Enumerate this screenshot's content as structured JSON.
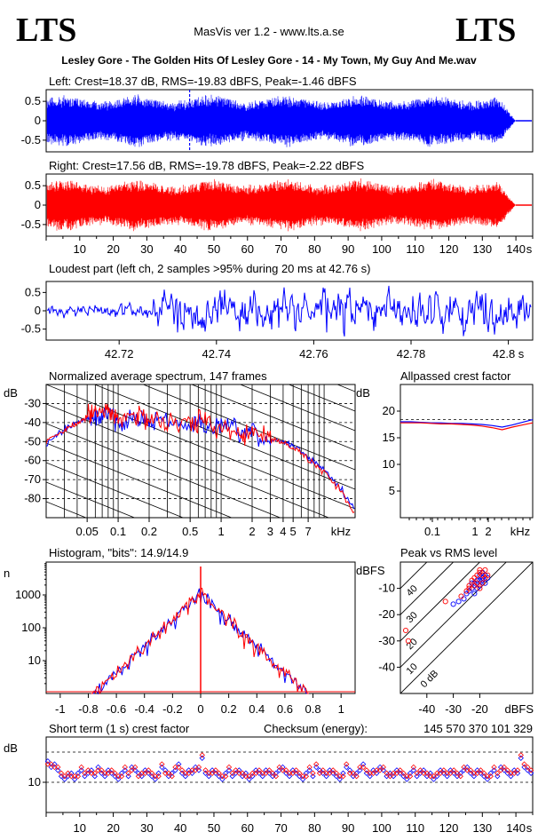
{
  "header": {
    "logo_left": "LTS",
    "logo_right": "LTS",
    "app_title": "MasVis ver 1.2 - www.lts.a.se",
    "file_title": "Lesley Gore - The Golden Hits Of Lesley Gore - 14 - My Town, My Guy And Me.wav"
  },
  "colors": {
    "left": "#0000ff",
    "right": "#ff0000",
    "axis": "#000000"
  },
  "chart_data": [
    {
      "id": "left",
      "type": "line",
      "title": "Left: Crest=18.37 dB, RMS=-19.83 dBFS, Peak=-1.46 dBFS",
      "ylim": [
        -0.8,
        0.8
      ],
      "yticks": [
        "0.5",
        "0",
        "-0.5"
      ],
      "xlim": [
        0,
        145
      ],
      "marker_x": 42.76,
      "envelope_peak": 0.85,
      "series": [
        {
          "color": "#0000ff"
        }
      ]
    },
    {
      "id": "right",
      "type": "line",
      "title": "Right: Crest=17.56 dB, RMS=-19.78 dBFS, Peak=-2.22 dBFS",
      "ylim": [
        -0.8,
        0.8
      ],
      "yticks": [
        "0.5",
        "0",
        "-0.5"
      ],
      "xlim": [
        0,
        145
      ],
      "xticks": [
        "10",
        "20",
        "30",
        "40",
        "50",
        "60",
        "70",
        "80",
        "90",
        "100",
        "110",
        "120",
        "130",
        "140",
        "s"
      ],
      "series": [
        {
          "color": "#ff0000"
        }
      ]
    },
    {
      "id": "loudest",
      "type": "line",
      "title": "Loudest part (left  ch, 2 samples >95% during 20 ms at 42.76 s)",
      "ylim": [
        -0.8,
        0.8
      ],
      "yticks": [
        "0.5",
        "0",
        "-0.5"
      ],
      "xlim": [
        42.705,
        42.805
      ],
      "xticks": [
        "42.72",
        "42.74",
        "42.76",
        "42.78",
        "42.8 s"
      ],
      "series": [
        {
          "color": "#0000ff"
        }
      ]
    },
    {
      "id": "spectrum",
      "type": "line",
      "title": "Normalized average spectrum, 147 frames",
      "ylabel": "dB",
      "ylim": [
        -90,
        -20
      ],
      "yticks": [
        "-30",
        "-40",
        "-50",
        "-60",
        "-70",
        "-80"
      ],
      "xticks": [
        "0.05",
        "0.1",
        "0.2",
        "0.5",
        "1",
        "2",
        "3",
        "4",
        "5",
        "7",
        "kHz"
      ],
      "xlim_khz": [
        0.02,
        20
      ],
      "series": [
        {
          "name": "left",
          "color": "#0000ff",
          "points_khz_db": [
            [
              0.02,
              -51
            ],
            [
              0.03,
              -44
            ],
            [
              0.04,
              -40
            ],
            [
              0.05,
              -38
            ],
            [
              0.06,
              -37
            ],
            [
              0.08,
              -36
            ],
            [
              0.1,
              -39
            ],
            [
              0.15,
              -38
            ],
            [
              0.2,
              -39
            ],
            [
              0.3,
              -40
            ],
            [
              0.5,
              -42
            ],
            [
              0.7,
              -41
            ],
            [
              1,
              -43
            ],
            [
              1.5,
              -45
            ],
            [
              2,
              -47
            ],
            [
              3,
              -49
            ],
            [
              4,
              -50
            ],
            [
              5,
              -52
            ],
            [
              7,
              -58
            ],
            [
              10,
              -65
            ],
            [
              15,
              -76
            ],
            [
              20,
              -86
            ]
          ]
        },
        {
          "name": "right",
          "color": "#ff0000",
          "points_khz_db": [
            [
              0.02,
              -50
            ],
            [
              0.03,
              -44
            ],
            [
              0.04,
              -40
            ],
            [
              0.05,
              -37
            ],
            [
              0.06,
              -35
            ],
            [
              0.08,
              -34
            ],
            [
              0.1,
              -37
            ],
            [
              0.15,
              -37
            ],
            [
              0.2,
              -38
            ],
            [
              0.3,
              -39
            ],
            [
              0.5,
              -40
            ],
            [
              0.7,
              -40
            ],
            [
              1,
              -42
            ],
            [
              1.5,
              -45
            ],
            [
              2,
              -46
            ],
            [
              3,
              -49
            ],
            [
              4,
              -50
            ],
            [
              5,
              -53
            ],
            [
              7,
              -59
            ],
            [
              10,
              -66
            ],
            [
              15,
              -77
            ],
            [
              20,
              -89
            ]
          ]
        }
      ]
    },
    {
      "id": "allpass",
      "type": "line",
      "title": "Allpassed crest factor",
      "ylabel": "dB",
      "ylim": [
        0,
        25
      ],
      "yticks": [
        "20",
        "15",
        "10",
        "5"
      ],
      "xticks": [
        "0.1",
        "1",
        "2",
        "kHz"
      ],
      "reference_db": 18.4,
      "series": [
        {
          "name": "left",
          "color": "#0000ff",
          "values_db": [
            18.0,
            18.0,
            17.9,
            17.8,
            17.8,
            17.7,
            17.7,
            17.6,
            17.5,
            17.3,
            17.0,
            17.4,
            17.9,
            18.4
          ]
        },
        {
          "name": "right",
          "color": "#ff0000",
          "values_db": [
            17.8,
            17.8,
            17.8,
            17.7,
            17.6,
            17.6,
            17.5,
            17.4,
            17.2,
            16.9,
            16.5,
            17.0,
            17.4,
            17.8
          ]
        }
      ]
    },
    {
      "id": "histogram",
      "type": "line",
      "title": "Histogram, \"bits\": 14.9/14.9",
      "ylabel": "n",
      "yticks": [
        "1000",
        "100",
        "10"
      ],
      "xticks": [
        "-1",
        "-0.8",
        "-0.6",
        "-0.4",
        "-0.2",
        "0",
        "0.2",
        "0.4",
        "0.6",
        "0.8",
        "1"
      ],
      "xlim": [
        -1.1,
        1.1
      ],
      "peak_count": 1200,
      "edge_amplitude": 0.78
    },
    {
      "id": "peak_vs_rms",
      "type": "scatter",
      "title": "Peak vs RMS level",
      "ylabel": "dBFS",
      "xlabel": "dBFS",
      "ylim": [
        -50,
        0
      ],
      "xlim": [
        -50,
        0
      ],
      "yticks": [
        "-10",
        "-20",
        "-30",
        "-40"
      ],
      "xticks": [
        "-40",
        "-30",
        "-20"
      ],
      "crest_lines": [
        "40",
        "30",
        "20",
        "10",
        "0 dB"
      ],
      "series": [
        {
          "name": "left",
          "color": "#0000ff",
          "points": [
            [
              -30,
              -16
            ],
            [
              -28,
              -15
            ],
            [
              -26,
              -14
            ],
            [
              -25,
              -12
            ],
            [
              -24,
              -11
            ],
            [
              -23,
              -10
            ],
            [
              -22,
              -8
            ],
            [
              -21,
              -7
            ],
            [
              -20,
              -7
            ],
            [
              -20,
              -5
            ],
            [
              -19,
              -6
            ],
            [
              -19,
              -4
            ],
            [
              -18,
              -5
            ],
            [
              -18,
              -8
            ],
            [
              -17,
              -6
            ],
            [
              -21,
              -10
            ],
            [
              -22,
              -12
            ],
            [
              -20,
              -9
            ],
            [
              -19,
              -7
            ],
            [
              -23,
              -8
            ]
          ]
        },
        {
          "name": "right",
          "color": "#ff0000",
          "points": [
            [
              -48,
              -26
            ],
            [
              -47,
              -30
            ],
            [
              -33,
              -15
            ],
            [
              -27,
              -13
            ],
            [
              -25,
              -11
            ],
            [
              -24,
              -9
            ],
            [
              -23,
              -7
            ],
            [
              -22,
              -6
            ],
            [
              -21,
              -5
            ],
            [
              -21,
              -8
            ],
            [
              -20,
              -4
            ],
            [
              -20,
              -3
            ],
            [
              -19,
              -5
            ],
            [
              -19,
              -8
            ],
            [
              -18,
              -6
            ],
            [
              -18,
              -3
            ],
            [
              -22,
              -9
            ],
            [
              -20,
              -10
            ],
            [
              -17,
              -5
            ],
            [
              -24,
              -10
            ]
          ]
        }
      ]
    },
    {
      "id": "short_term_crest",
      "type": "scatter",
      "title": "Short term (1 s) crest factor",
      "checksum_label": "Checksum (energy):",
      "checksum_value": "145 570 370 101 329",
      "ylabel": "dB",
      "ylim": [
        0,
        25
      ],
      "yticks": [
        "10"
      ],
      "ref_lines": [
        10,
        20
      ],
      "xticks": [
        "10",
        "20",
        "30",
        "40",
        "50",
        "60",
        "70",
        "80",
        "90",
        "100",
        "110",
        "120",
        "130",
        "140",
        "s"
      ],
      "xlim": [
        0,
        145
      ],
      "series": [
        {
          "name": "left",
          "color": "#0000ff",
          "values": [
            17,
            15,
            16,
            14,
            12,
            11,
            12,
            13,
            11,
            13,
            14,
            12,
            13,
            14,
            12,
            15,
            13,
            12,
            14,
            13,
            12,
            11,
            13,
            14,
            12,
            15,
            14,
            13,
            12,
            14,
            13,
            12,
            11,
            13,
            15,
            14,
            12,
            13,
            14,
            16,
            13,
            12,
            14,
            13,
            15,
            14,
            18,
            13,
            12,
            14,
            13,
            12,
            11,
            13,
            14,
            12,
            13,
            14,
            12,
            13,
            11,
            12,
            14,
            13,
            12,
            14,
            13,
            12,
            13,
            14,
            15,
            13,
            12,
            14,
            13,
            12,
            11,
            13,
            14,
            12,
            15,
            14,
            13,
            12,
            14,
            13,
            12,
            11,
            13,
            15,
            14,
            12,
            13,
            14,
            16,
            13,
            12,
            14,
            13,
            15,
            14,
            12,
            13,
            12,
            14,
            13,
            12,
            11,
            13,
            14,
            12,
            13,
            14,
            12,
            13,
            11,
            12,
            14,
            13,
            12,
            14,
            13,
            12,
            13,
            14,
            15,
            13,
            12,
            14,
            13,
            12,
            11,
            13,
            14,
            12,
            15,
            14,
            13,
            12,
            14,
            13,
            18,
            15,
            14,
            13
          ]
        },
        {
          "name": "right",
          "color": "#ff0000",
          "values": [
            16,
            16,
            15,
            15,
            13,
            12,
            13,
            12,
            12,
            12,
            15,
            13,
            14,
            13,
            13,
            14,
            14,
            13,
            13,
            14,
            13,
            12,
            12,
            15,
            13,
            14,
            15,
            12,
            13,
            13,
            14,
            13,
            12,
            12,
            16,
            13,
            13,
            12,
            15,
            15,
            14,
            13,
            13,
            14,
            14,
            15,
            19,
            14,
            13,
            13,
            14,
            13,
            12,
            12,
            15,
            13,
            14,
            13,
            13,
            12,
            12,
            13,
            13,
            14,
            13,
            13,
            14,
            13,
            12,
            15,
            14,
            14,
            13,
            13,
            14,
            13,
            12,
            12,
            15,
            13,
            16,
            13,
            14,
            13,
            13,
            14,
            13,
            12,
            12,
            16,
            13,
            13,
            12,
            15,
            15,
            14,
            13,
            13,
            14,
            14,
            15,
            13,
            12,
            13,
            13,
            14,
            13,
            12,
            12,
            15,
            13,
            14,
            13,
            13,
            12,
            12,
            13,
            13,
            14,
            13,
            13,
            14,
            13,
            12,
            15,
            14,
            14,
            13,
            13,
            14,
            13,
            12,
            12,
            15,
            13,
            14,
            15,
            14,
            13,
            13,
            14,
            19,
            16,
            15,
            14
          ]
        }
      ]
    }
  ]
}
